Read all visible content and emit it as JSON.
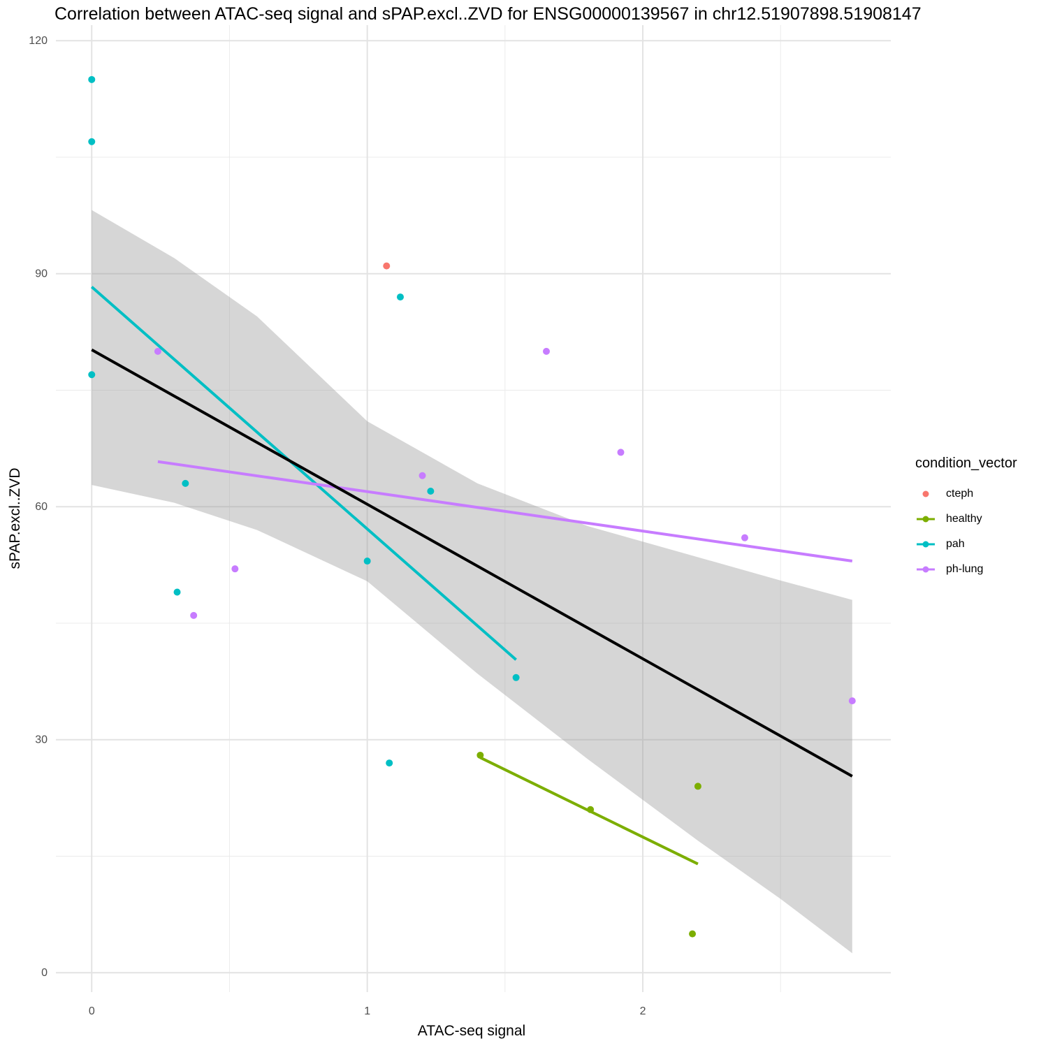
{
  "chart_data": {
    "type": "scatter",
    "title": "Correlation between ATAC-seq signal and sPAP.excl..ZVD for ENSG00000139567 in chr12.51907898.51908147",
    "xlabel": "ATAC-seq signal",
    "ylabel": "sPAP.excl..ZVD",
    "xlim": [
      -0.13,
      2.9
    ],
    "ylim": [
      -2.5,
      122
    ],
    "x_ticks": [
      0,
      1,
      2
    ],
    "y_ticks": [
      0,
      30,
      60,
      90,
      120
    ],
    "x_tick_labels": [
      "0",
      "1",
      "2"
    ],
    "y_tick_labels": [
      "0",
      "30",
      "60",
      "90",
      "120"
    ],
    "grid": true,
    "legend": {
      "title": "condition_vector",
      "position": "right",
      "entries": [
        {
          "label": "cteph",
          "color": "#F8766D",
          "line": false
        },
        {
          "label": "healthy",
          "color": "#7CAE00",
          "line": true
        },
        {
          "label": "pah",
          "color": "#00BFC4",
          "line": true
        },
        {
          "label": "ph-lung",
          "color": "#C77CFF",
          "line": true
        }
      ]
    },
    "series": [
      {
        "name": "cteph",
        "color": "#F8766D",
        "points": [
          [
            1.07,
            91
          ]
        ]
      },
      {
        "name": "healthy",
        "color": "#7CAE00",
        "points": [
          [
            1.41,
            28
          ],
          [
            1.81,
            21
          ],
          [
            2.2,
            24
          ],
          [
            2.18,
            5
          ]
        ],
        "fit": [
          [
            1.41,
            27.7
          ],
          [
            2.2,
            14
          ]
        ]
      },
      {
        "name": "pah",
        "color": "#00BFC4",
        "points": [
          [
            0,
            115
          ],
          [
            0,
            107
          ],
          [
            0,
            77
          ],
          [
            0.34,
            63
          ],
          [
            0.31,
            49
          ],
          [
            1.0,
            53
          ],
          [
            1.12,
            87
          ],
          [
            1.23,
            62
          ],
          [
            1.54,
            38
          ],
          [
            1.08,
            27
          ]
        ],
        "fit": [
          [
            0,
            88.3
          ],
          [
            1.54,
            40.3
          ]
        ]
      },
      {
        "name": "ph-lung",
        "color": "#C77CFF",
        "points": [
          [
            0.24,
            80
          ],
          [
            0.37,
            46
          ],
          [
            0.52,
            52
          ],
          [
            1.2,
            64
          ],
          [
            1.65,
            80
          ],
          [
            1.92,
            67
          ],
          [
            2.37,
            56
          ],
          [
            2.76,
            35
          ]
        ],
        "fit": [
          [
            0.24,
            65.8
          ],
          [
            2.76,
            53
          ]
        ]
      }
    ],
    "overall_fit": {
      "color": "#000000",
      "line": [
        [
          0,
          80.2
        ],
        [
          2.76,
          25.3
        ]
      ],
      "ci_band": [
        {
          "x": 0,
          "lo": 62.8,
          "hi": 98.2
        },
        {
          "x": 0.3,
          "lo": 60.5,
          "hi": 92.0
        },
        {
          "x": 0.6,
          "lo": 57.0,
          "hi": 84.5
        },
        {
          "x": 1.0,
          "lo": 50.4,
          "hi": 71.0
        },
        {
          "x": 1.4,
          "lo": 38.5,
          "hi": 63.0
        },
        {
          "x": 1.8,
          "lo": 27.5,
          "hi": 57.5
        },
        {
          "x": 2.2,
          "lo": 17.0,
          "hi": 53.5
        },
        {
          "x": 2.5,
          "lo": 9.5,
          "hi": 50.5
        },
        {
          "x": 2.76,
          "lo": 2.5,
          "hi": 48.0
        }
      ]
    }
  }
}
